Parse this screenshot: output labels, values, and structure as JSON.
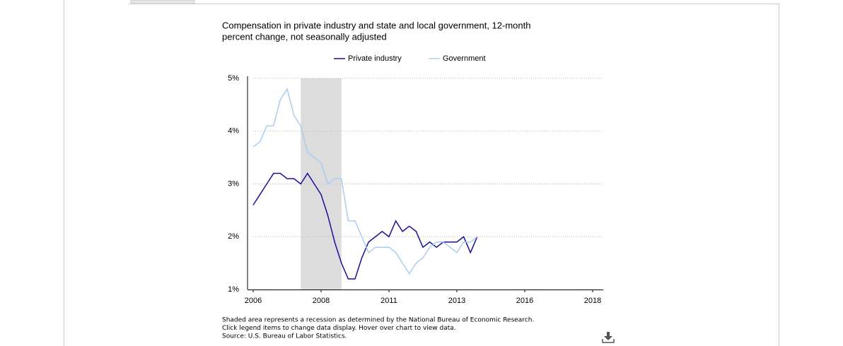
{
  "chart_data": {
    "type": "line",
    "title": "Compensation in private industry and state and local government, 12-month",
    "subtitle": "percent change, not seasonally adjusted",
    "categories": [
      "2006",
      null,
      null,
      null,
      null,
      null,
      null,
      null,
      null,
      null,
      "2008",
      null,
      null,
      null,
      null,
      null,
      null,
      null,
      null,
      null,
      "2011",
      null,
      null,
      null,
      null,
      null,
      null,
      null,
      null,
      null,
      "2013",
      null,
      null,
      null,
      null,
      null,
      null,
      null,
      null,
      null,
      "2016",
      null,
      null,
      null,
      null,
      null,
      null,
      null,
      null,
      null,
      "2018"
    ],
    "series": [
      {
        "name": "Private industry",
        "color": "#1a0f99",
        "values": [
          2.6,
          2.8,
          3.0,
          3.2,
          3.2,
          3.1,
          3.1,
          3.0,
          3.2,
          3.0,
          2.8,
          2.4,
          1.9,
          1.5,
          1.2,
          1.2,
          1.6,
          1.9,
          2.0,
          2.1,
          2.0,
          2.3,
          2.1,
          2.2,
          2.1,
          1.8,
          1.9,
          1.8,
          1.9,
          1.9,
          1.9,
          2.0,
          1.7,
          2.0,
          null,
          null,
          null,
          null,
          null,
          null,
          null,
          null,
          null,
          null,
          null,
          null,
          null,
          null,
          null,
          null,
          null
        ]
      },
      {
        "name": "Government",
        "color": "#a9cdf2",
        "values": [
          3.7,
          3.8,
          4.1,
          4.1,
          4.6,
          4.8,
          4.3,
          4.1,
          3.6,
          3.5,
          3.4,
          3.0,
          3.1,
          3.1,
          2.3,
          2.3,
          2.0,
          1.7,
          1.8,
          1.8,
          1.8,
          1.7,
          1.5,
          1.3,
          1.5,
          1.6,
          1.8,
          1.9,
          1.9,
          1.8,
          1.7,
          1.9,
          1.9,
          2.0,
          null,
          null,
          null,
          null,
          null,
          null,
          null,
          null,
          null,
          null,
          null,
          null,
          null,
          null,
          null,
          null,
          null
        ]
      }
    ],
    "recession": [
      7,
      13
    ],
    "ylim": [
      1,
      5
    ],
    "yticks": [
      {
        "value": 1,
        "label": "1%"
      },
      {
        "value": 2,
        "label": "2%"
      },
      {
        "value": 3,
        "label": "3%"
      },
      {
        "value": 4,
        "label": "4%"
      },
      {
        "value": 5,
        "label": "5%"
      }
    ],
    "grid": true,
    "legend": "top",
    "notes": [
      "Shaded area represents a recession as determined by the National Bureau of Economic Research.",
      "Click legend items to change data display. Hover over chart to view data.",
      "Source: U.S. Bureau of Labor Statistics."
    ]
  }
}
